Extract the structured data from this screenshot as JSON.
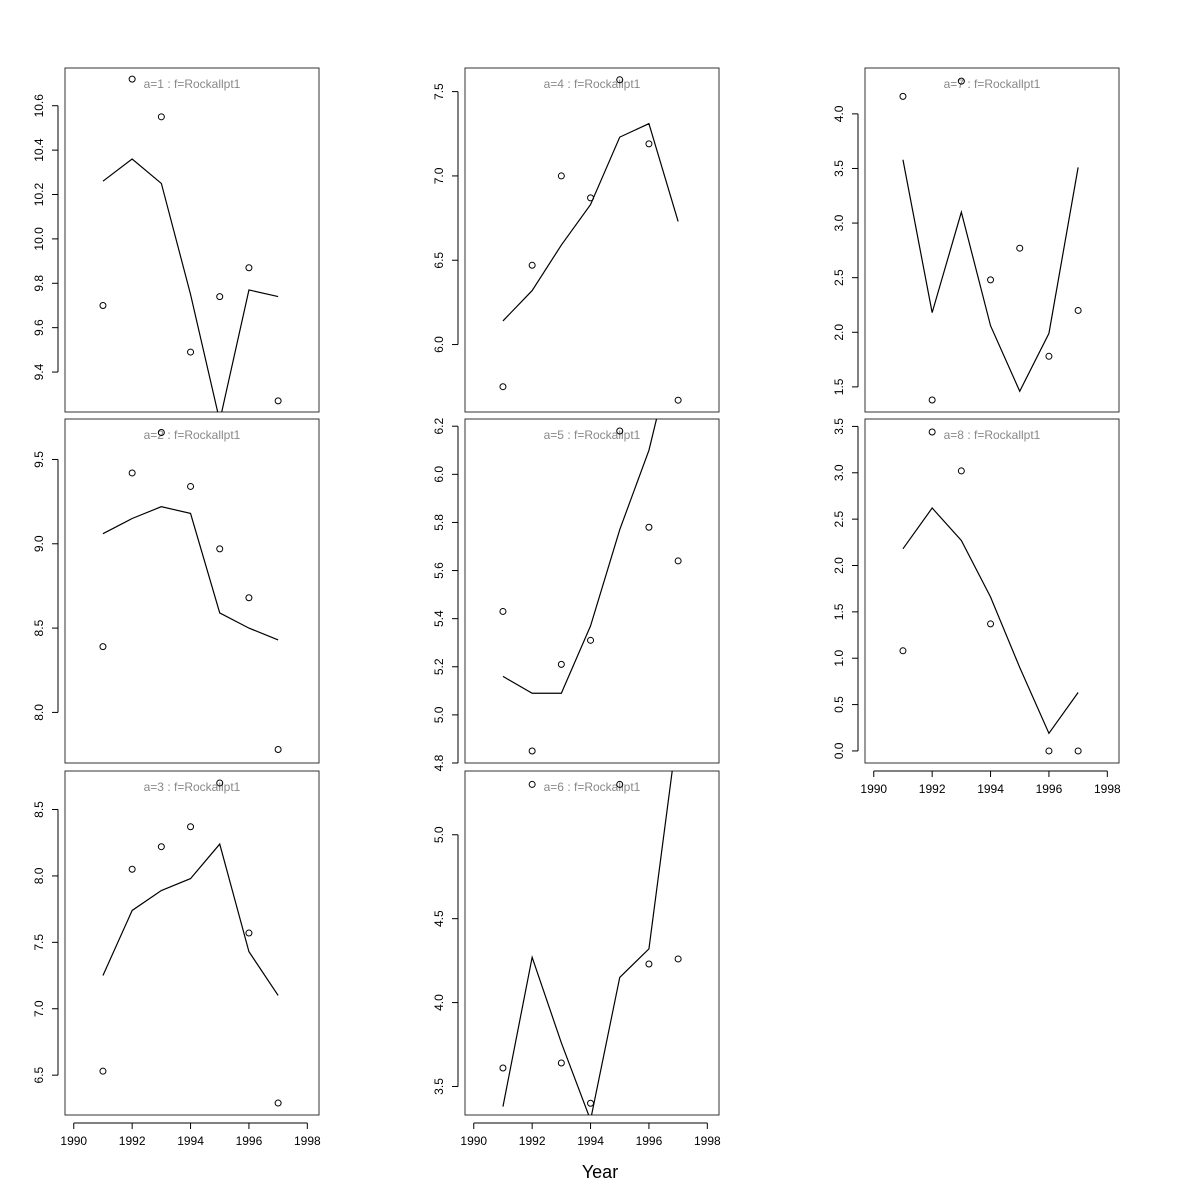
{
  "xlabel": "Year",
  "chart_data": [
    {
      "type": "line",
      "title": "a=1  :  f=Rockallpt1",
      "x": [
        1991,
        1992,
        1993,
        1994,
        1995,
        1996,
        1997
      ],
      "xlim": [
        1989.7,
        1998.4
      ],
      "ylim": [
        9.22,
        10.77
      ],
      "yticks": [
        9.4,
        9.6,
        9.8,
        {
          "value": 10,
          "label": "10.0"
        },
        10.2,
        10.4,
        10.6
      ],
      "series": [
        {
          "style": "points",
          "color": "#000000",
          "values": [
            9.7,
            10.72,
            10.55,
            9.49,
            9.74,
            9.87,
            9.27
          ]
        },
        {
          "style": "line",
          "color": "#000000",
          "values": [
            10.26,
            10.36,
            10.25,
            9.75,
            9.18,
            9.77,
            9.74
          ]
        }
      ]
    },
    {
      "type": "line",
      "title": "a=2  :  f=Rockallpt1",
      "x": [
        1991,
        1992,
        1993,
        1994,
        1995,
        1996,
        1997
      ],
      "xlim": [
        1989.7,
        1998.4
      ],
      "ylim": [
        7.7,
        9.74
      ],
      "yticks": [
        {
          "value": 8,
          "label": "8.0"
        },
        8.5,
        {
          "value": 9,
          "label": "9.0"
        },
        9.5
      ],
      "series": [
        {
          "style": "points",
          "color": "#000000",
          "values": [
            8.39,
            9.42,
            9.66,
            9.34,
            8.97,
            8.68,
            7.78
          ]
        },
        {
          "style": "line",
          "color": "#000000",
          "values": [
            9.06,
            9.15,
            9.22,
            9.18,
            8.59,
            8.5,
            8.43
          ]
        }
      ]
    },
    {
      "type": "line",
      "title": "a=3  :  f=Rockallpt1",
      "x": [
        1991,
        1992,
        1993,
        1994,
        1995,
        1996,
        1997
      ],
      "xlim": [
        1989.7,
        1998.4
      ],
      "xticks": [
        1990,
        1992,
        1994,
        1996,
        1998
      ],
      "ylim": [
        6.2,
        8.79
      ],
      "yticks": [
        6.5,
        {
          "value": 7,
          "label": "7.0"
        },
        7.5,
        {
          "value": 8,
          "label": "8.0"
        },
        8.5
      ],
      "series": [
        {
          "style": "points",
          "color": "#000000",
          "values": [
            6.53,
            8.05,
            8.22,
            8.37,
            8.7,
            7.57,
            6.29
          ]
        },
        {
          "style": "line",
          "color": "#000000",
          "values": [
            7.25,
            7.74,
            7.89,
            7.98,
            8.24,
            7.43,
            7.1
          ]
        }
      ]
    },
    {
      "type": "line",
      "title": "a=4  :  f=Rockallpt1",
      "x": [
        1991,
        1992,
        1993,
        1994,
        1995,
        1996,
        1997
      ],
      "xlim": [
        1989.7,
        1998.4
      ],
      "ylim": [
        5.6,
        7.64
      ],
      "yticks": [
        {
          "value": 6,
          "label": "6.0"
        },
        6.5,
        {
          "value": 7,
          "label": "7.0"
        },
        7.5
      ],
      "series": [
        {
          "style": "points",
          "color": "#000000",
          "values": [
            5.75,
            6.47,
            7.0,
            6.87,
            7.57,
            7.19,
            5.67
          ]
        },
        {
          "style": "line",
          "color": "#000000",
          "values": [
            6.14,
            6.32,
            6.59,
            6.83,
            7.23,
            7.31,
            6.73
          ]
        }
      ]
    },
    {
      "type": "line",
      "title": "a=5  :  f=Rockallpt1",
      "x": [
        1991,
        1992,
        1993,
        1994,
        1995,
        1996,
        1997
      ],
      "xlim": [
        1989.7,
        1998.4
      ],
      "ylim": [
        4.8,
        6.23
      ],
      "yticks": [
        4.8,
        {
          "value": 5,
          "label": "5.0"
        },
        5.2,
        5.4,
        5.6,
        5.8,
        {
          "value": 6,
          "label": "6.0"
        },
        6.2
      ],
      "series": [
        {
          "style": "points",
          "color": "#000000",
          "values": [
            5.43,
            4.85,
            5.21,
            5.31,
            6.18,
            5.78,
            5.64
          ]
        },
        {
          "style": "line",
          "color": "#000000",
          "values": [
            5.16,
            5.09,
            5.09,
            5.37,
            5.77,
            6.1,
            6.6
          ]
        }
      ]
    },
    {
      "type": "line",
      "title": "a=6  :  f=Rockallpt1",
      "x": [
        1991,
        1992,
        1993,
        1994,
        1995,
        1996,
        1997
      ],
      "xlim": [
        1989.7,
        1998.4
      ],
      "xticks": [
        1990,
        1992,
        1994,
        1996,
        1998
      ],
      "ylim": [
        3.33,
        5.38
      ],
      "yticks": [
        3.5,
        {
          "value": 4,
          "label": "4.0"
        },
        4.5,
        {
          "value": 5,
          "label": "5.0"
        }
      ],
      "series": [
        {
          "style": "points",
          "color": "#000000",
          "values": [
            3.61,
            5.3,
            3.64,
            3.4,
            5.3,
            4.23,
            4.26
          ]
        },
        {
          "style": "line",
          "color": "#000000",
          "values": [
            3.38,
            4.27,
            3.76,
            3.3,
            4.15,
            4.32,
            5.65
          ]
        }
      ]
    },
    {
      "type": "line",
      "title": "a=7  :  f=Rockallpt1",
      "x": [
        1991,
        1992,
        1993,
        1994,
        1995,
        1996,
        1997
      ],
      "xlim": [
        1989.7,
        1998.4
      ],
      "ylim": [
        1.27,
        4.42
      ],
      "yticks": [
        1.5,
        {
          "value": 2,
          "label": "2.0"
        },
        2.5,
        {
          "value": 3,
          "label": "3.0"
        },
        3.5,
        {
          "value": 4,
          "label": "4.0"
        }
      ],
      "series": [
        {
          "style": "points",
          "color": "#000000",
          "values": [
            4.16,
            1.38,
            4.3,
            2.48,
            2.77,
            1.78,
            2.2
          ]
        },
        {
          "style": "line",
          "color": "#000000",
          "values": [
            3.58,
            2.18,
            3.1,
            2.06,
            1.46,
            1.99,
            3.51
          ]
        }
      ]
    },
    {
      "type": "line",
      "title": "a=8  :  f=Rockallpt1",
      "x": [
        1991,
        1992,
        1993,
        1994,
        1995,
        1996,
        1997
      ],
      "xlim": [
        1989.7,
        1998.4
      ],
      "xticks": [
        1990,
        1992,
        1994,
        1996,
        1998
      ],
      "ylim": [
        -0.13,
        3.58
      ],
      "yticks": [
        {
          "value": 0,
          "label": "0.0"
        },
        0.5,
        {
          "value": 1,
          "label": "1.0"
        },
        1.5,
        {
          "value": 2,
          "label": "2.0"
        },
        2.5,
        {
          "value": 3,
          "label": "3.0"
        },
        3.5
      ],
      "series": [
        {
          "style": "points",
          "color": "#000000",
          "values": [
            1.08,
            3.44,
            3.02,
            1.37,
            null,
            0.0,
            0.0
          ]
        },
        {
          "style": "line",
          "color": "#000000",
          "values": [
            2.18,
            2.62,
            2.27,
            1.66,
            0.9,
            0.19,
            0.63
          ]
        }
      ]
    }
  ]
}
